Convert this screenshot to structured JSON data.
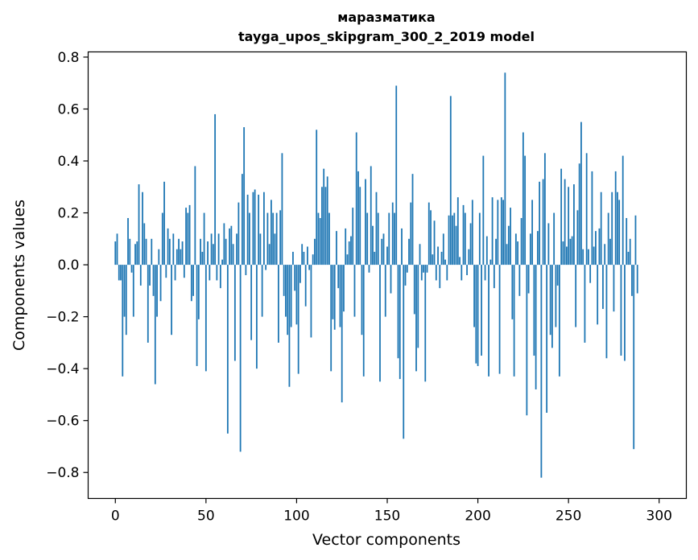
{
  "chart_data": {
    "type": "bar",
    "title": "маразматика",
    "subtitle": "tayga_upos_skipgram_300_2_2019 model",
    "xlabel": "Vector components",
    "ylabel": "Components values",
    "xlim": [
      -15,
      315
    ],
    "ylim": [
      -0.9,
      0.82
    ],
    "xticks": [
      0,
      50,
      100,
      150,
      200,
      250,
      300
    ],
    "yticks": [
      -0.8,
      -0.6,
      -0.4,
      -0.2,
      0.0,
      0.2,
      0.4,
      0.6,
      0.8
    ],
    "ytick_labels": [
      "−0.8",
      "−0.6",
      "−0.4",
      "−0.2",
      "0.0",
      "0.2",
      "0.4",
      "0.6",
      "0.8"
    ],
    "bar_color": "#1f77b4",
    "grid": false,
    "values": [
      0.09,
      0.12,
      -0.06,
      -0.06,
      -0.43,
      -0.2,
      -0.27,
      0.18,
      0.1,
      -0.03,
      -0.2,
      0.08,
      0.09,
      0.31,
      -0.08,
      0.28,
      0.16,
      0.1,
      -0.3,
      -0.08,
      0.1,
      -0.12,
      -0.46,
      -0.2,
      0.06,
      -0.14,
      0.2,
      0.32,
      -0.05,
      0.14,
      0.1,
      -0.27,
      0.12,
      -0.06,
      0.06,
      0.1,
      0.06,
      0.09,
      -0.05,
      0.22,
      0.2,
      0.23,
      -0.14,
      -0.12,
      0.38,
      -0.39,
      -0.21,
      0.1,
      0.05,
      0.2,
      -0.41,
      0.09,
      -0.06,
      0.12,
      0.08,
      0.58,
      -0.06,
      0.12,
      -0.09,
      0.02,
      0.16,
      0.1,
      -0.65,
      0.14,
      0.15,
      0.08,
      -0.37,
      0.12,
      0.24,
      -0.72,
      0.35,
      0.53,
      -0.04,
      0.27,
      0.2,
      -0.29,
      0.28,
      0.29,
      -0.4,
      0.27,
      0.12,
      -0.2,
      0.28,
      -0.02,
      0.2,
      0.08,
      0.25,
      0.2,
      0.12,
      0.2,
      -0.3,
      0.21,
      0.43,
      -0.12,
      -0.2,
      -0.27,
      -0.47,
      -0.24,
      0.05,
      -0.1,
      -0.23,
      -0.42,
      -0.07,
      0.08,
      0.05,
      -0.16,
      0.07,
      -0.02,
      -0.28,
      0.04,
      0.1,
      0.52,
      0.2,
      0.18,
      0.3,
      0.37,
      0.3,
      0.34,
      0.2,
      -0.41,
      -0.21,
      -0.25,
      0.13,
      -0.09,
      -0.24,
      -0.53,
      -0.18,
      0.14,
      0.04,
      0.09,
      0.11,
      0.22,
      -0.2,
      0.51,
      0.36,
      0.3,
      -0.27,
      -0.43,
      0.33,
      0.2,
      -0.03,
      0.38,
      0.15,
      0.05,
      0.28,
      0.2,
      -0.45,
      0.1,
      0.12,
      -0.2,
      0.07,
      0.2,
      -0.11,
      0.24,
      0.2,
      0.69,
      -0.36,
      -0.44,
      0.14,
      -0.67,
      -0.08,
      -0.03,
      0.1,
      0.24,
      0.35,
      -0.19,
      -0.41,
      -0.32,
      0.08,
      -0.06,
      -0.03,
      -0.45,
      -0.03,
      0.24,
      0.21,
      0.04,
      0.17,
      -0.06,
      0.07,
      -0.09,
      0.05,
      0.12,
      0.02,
      -0.06,
      0.19,
      0.65,
      0.19,
      0.2,
      0.15,
      0.26,
      0.03,
      -0.06,
      0.23,
      0.2,
      -0.04,
      0.06,
      0.16,
      0.25,
      -0.24,
      -0.38,
      -0.39,
      0.2,
      -0.35,
      0.42,
      -0.06,
      0.11,
      -0.43,
      0.02,
      0.26,
      -0.09,
      0.1,
      0.25,
      -0.42,
      0.26,
      0.25,
      0.74,
      0.08,
      0.15,
      0.22,
      -0.21,
      -0.43,
      0.12,
      0.09,
      -0.12,
      0.18,
      0.51,
      0.42,
      -0.58,
      -0.11,
      0.12,
      0.25,
      -0.35,
      -0.48,
      0.13,
      0.32,
      -0.82,
      0.33,
      0.43,
      -0.57,
      0.16,
      -0.27,
      -0.32,
      0.2,
      -0.24,
      -0.08,
      -0.43,
      0.37,
      0.09,
      0.33,
      0.07,
      0.3,
      0.1,
      0.11,
      0.31,
      -0.24,
      0.21,
      0.39,
      0.55,
      0.06,
      -0.3,
      0.43,
      0.06,
      -0.07,
      0.36,
      0.07,
      0.13,
      -0.23,
      0.14,
      0.28,
      -0.17,
      0.08,
      -0.36,
      0.2,
      0.1,
      0.28,
      -0.18,
      0.36,
      0.28,
      0.25,
      -0.35,
      0.42,
      -0.37,
      0.18,
      0.05,
      0.1,
      -0.12,
      -0.71,
      0.19,
      -0.11
    ]
  }
}
